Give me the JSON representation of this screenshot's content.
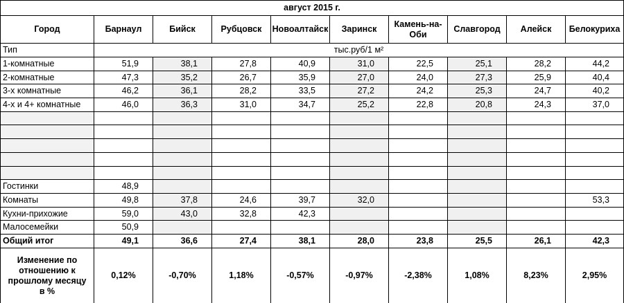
{
  "title": "август 2015 г.",
  "header": {
    "first": "Город",
    "cities": [
      "Барнаул",
      "Бийск",
      "Рубцовск",
      "Новоалтайск",
      "Заринск",
      "Камень-на-Оби",
      "Славгород",
      "Алейск",
      "Белокуриха"
    ]
  },
  "unit_row": {
    "label": "Тип",
    "unit": "тыс.руб/1 м²"
  },
  "rows": [
    {
      "label": "1-комнатные",
      "cells": [
        "51,9",
        "38,1",
        "27,8",
        "40,9",
        "31,0",
        "22,5",
        "25,1",
        "28,2",
        "44,2"
      ]
    },
    {
      "label": "2-комнатные",
      "cells": [
        "47,3",
        "35,2",
        "26,7",
        "35,9",
        "27,0",
        "24,0",
        "27,3",
        "25,9",
        "40,4"
      ]
    },
    {
      "label": "3-х комнатные",
      "cells": [
        "46,2",
        "36,1",
        "28,2",
        "33,5",
        "27,2",
        "24,2",
        "25,3",
        "24,7",
        "40,2"
      ]
    },
    {
      "label": "4-х и 4+ комнатные",
      "cells": [
        "46,0",
        "36,3",
        "31,0",
        "34,7",
        "25,2",
        "22,8",
        "20,8",
        "24,3",
        "37,0"
      ]
    },
    {
      "label": null,
      "cells": [
        null,
        null,
        null,
        null,
        null,
        null,
        null,
        null,
        null
      ]
    },
    {
      "label": null,
      "cells": [
        null,
        null,
        null,
        null,
        null,
        null,
        null,
        null,
        null
      ]
    },
    {
      "label": null,
      "cells": [
        null,
        null,
        null,
        null,
        null,
        null,
        null,
        null,
        null
      ]
    },
    {
      "label": null,
      "cells": [
        null,
        null,
        null,
        null,
        null,
        null,
        null,
        null,
        null
      ]
    },
    {
      "label": null,
      "cells": [
        null,
        null,
        null,
        null,
        null,
        null,
        null,
        null,
        null
      ]
    },
    {
      "label": "Гостинки",
      "cells": [
        "48,9",
        null,
        null,
        null,
        null,
        null,
        null,
        null,
        null
      ]
    },
    {
      "label": "Комнаты",
      "cells": [
        "49,8",
        "37,8",
        "24,6",
        "39,7",
        "32,0",
        null,
        null,
        null,
        "53,3"
      ]
    },
    {
      "label": "Кухни-прихожие",
      "cells": [
        "59,0",
        "43,0",
        "32,8",
        "42,3",
        null,
        null,
        null,
        null,
        null
      ]
    },
    {
      "label": "Малосемейки",
      "cells": [
        "50,9",
        null,
        null,
        null,
        null,
        null,
        null,
        null,
        null
      ]
    }
  ],
  "total": {
    "label": "Общий итог",
    "cells": [
      "49,1",
      "36,6",
      "27,4",
      "38,1",
      "28,0",
      "23,8",
      "25,5",
      "26,1",
      "42,3"
    ]
  },
  "change": {
    "label": "Изменение по отношению к прошлому месяцу в %",
    "cells": [
      "0,12%",
      "-0,70%",
      "1,18%",
      "-0,57%",
      "-0,97%",
      "-2,38%",
      "1,08%",
      "8,23%",
      "2,95%"
    ]
  }
}
